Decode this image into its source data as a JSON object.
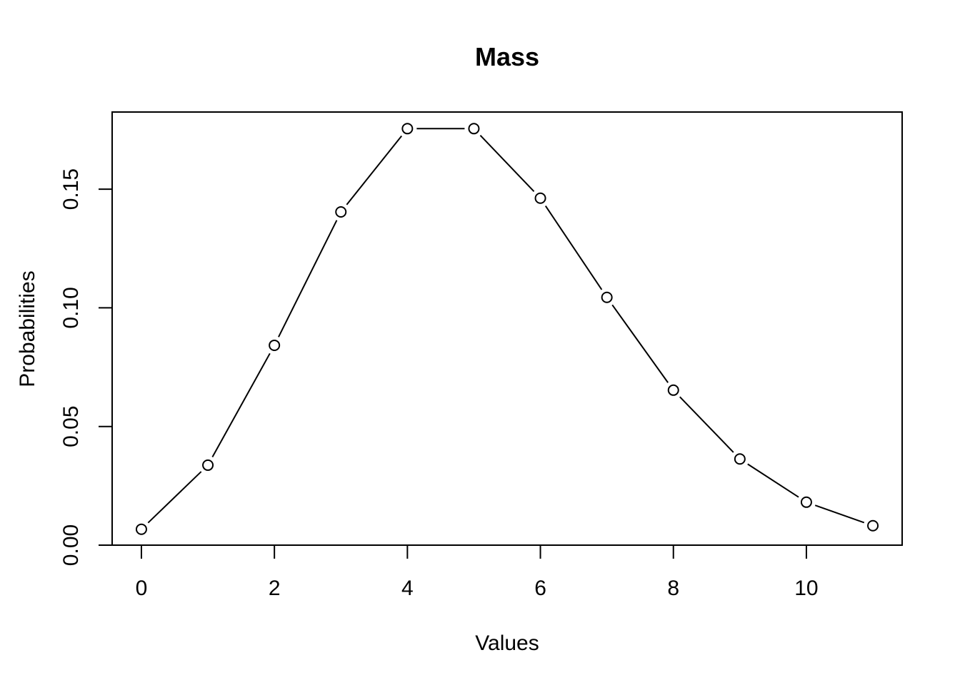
{
  "chart_data": {
    "type": "line",
    "title": "Mass",
    "xlabel": "Values",
    "ylabel": "Probabilities",
    "x": [
      0,
      1,
      2,
      3,
      4,
      5,
      6,
      7,
      8,
      9,
      10,
      11
    ],
    "series": [
      {
        "values": [
          0.0067,
          0.0337,
          0.0842,
          0.1404,
          0.1755,
          0.1755,
          0.1462,
          0.1044,
          0.0653,
          0.0363,
          0.0181,
          0.0082
        ]
      }
    ],
    "xlim": [
      -0.44,
      11.44
    ],
    "ylim": [
      0,
      0.1825
    ],
    "xticks": [
      0,
      2,
      4,
      6,
      8,
      10
    ],
    "xtick_labels": [
      "0",
      "2",
      "4",
      "6",
      "8",
      "10"
    ],
    "yticks": [
      0,
      0.05,
      0.1,
      0.15
    ],
    "ytick_labels": [
      "0.00",
      "0.05",
      "0.10",
      "0.15"
    ],
    "marker": "open-circle",
    "line_color": "#000000",
    "grid": false,
    "legend": "none"
  }
}
